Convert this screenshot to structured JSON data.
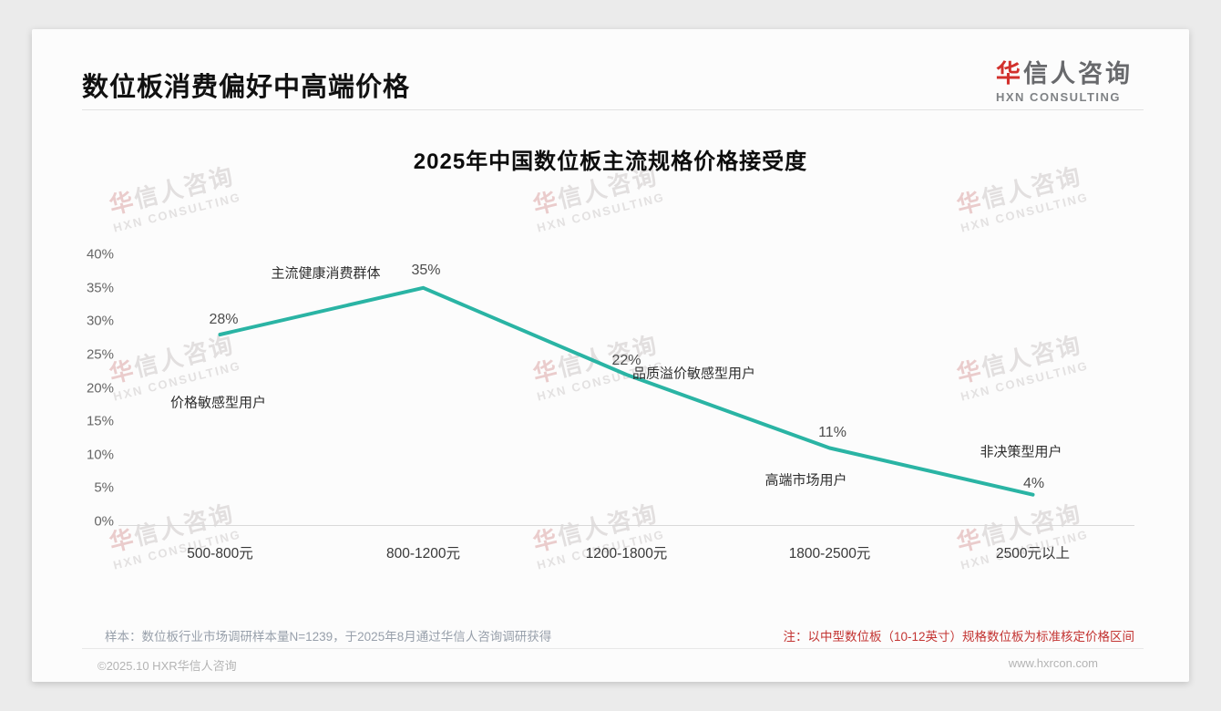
{
  "page": {
    "title": "数位板消费偏好中高端价格",
    "logo": {
      "cn_first": "华",
      "cn_rest": "信人咨询",
      "en": "HXN CONSULTING"
    },
    "watermark": {
      "cn_first": "华",
      "cn_rest": "信人咨询",
      "en": "HXN CONSULTING"
    }
  },
  "chart_data": {
    "type": "line",
    "title": "2025年中国数位板主流规格价格接受度",
    "categories": [
      "500-800元",
      "800-1200元",
      "1200-1800元",
      "1800-2500元",
      "2500元以上"
    ],
    "values": [
      28,
      35,
      22,
      11,
      4
    ],
    "value_labels": [
      "28%",
      "35%",
      "22%",
      "11%",
      "4%"
    ],
    "point_annotations": [
      "价格敏感型用户",
      "主流健康消费群体",
      "品质溢价敏感型用户",
      "高端市场用户",
      "非决策型用户"
    ],
    "ylim": [
      0,
      40
    ],
    "ytick_step": 5,
    "yticks": [
      "40%",
      "35%",
      "30%",
      "25%",
      "20%",
      "15%",
      "10%",
      "5%",
      "0%"
    ],
    "xlabel": "",
    "ylabel": "",
    "grid": false,
    "legend": false,
    "line_color": "#2ab4a4"
  },
  "footer": {
    "sample_note": "样本：数位板行业市场调研样本量N=1239，于2025年8月通过华信人咨询调研获得",
    "price_note": "注：以中型数位板（10-12英寸）规格数位板为标准核定价格区间",
    "copyright": "©2025.10 HXR华信人咨询",
    "website": "www.hxrcon.com"
  }
}
